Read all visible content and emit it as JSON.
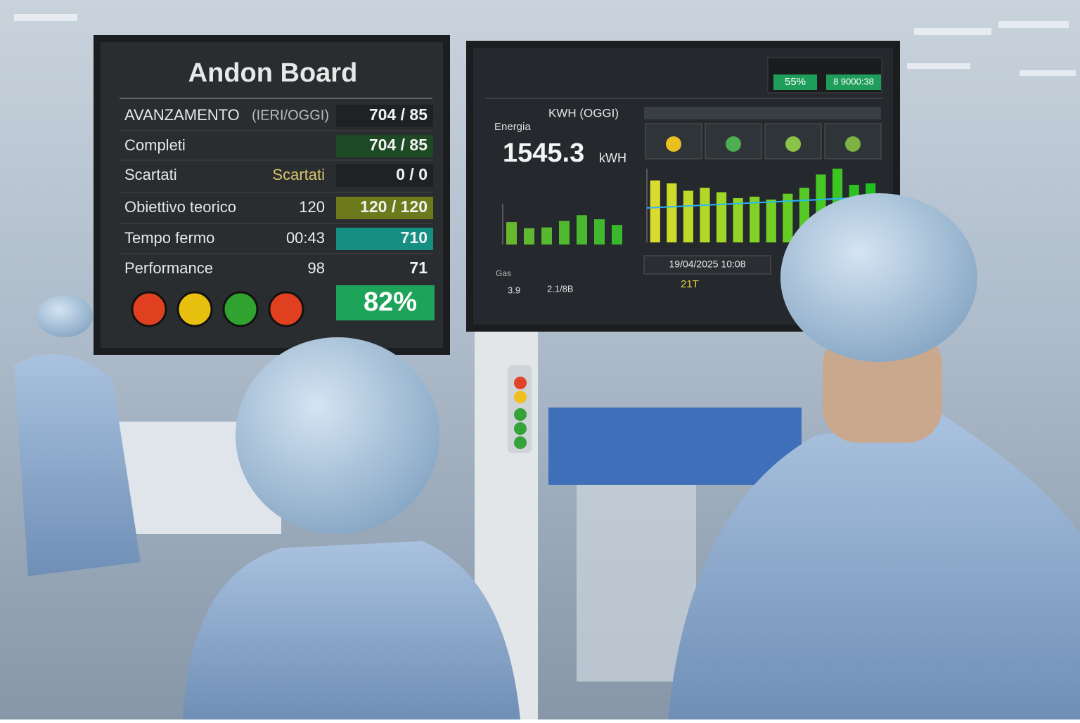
{
  "left_board": {
    "title": "Andon Board",
    "rows": [
      {
        "label": "AVANZAMENTO",
        "sublabel": "(IERI/OGGI)",
        "value": "704 /  85"
      },
      {
        "label": "Completi",
        "value": "704 /  85"
      },
      {
        "label": "Scartati",
        "mid": "Scartati",
        "value": "0 /   0"
      },
      {
        "label": "Obiettivo teorico",
        "mid": "120",
        "value": "120 / 120"
      },
      {
        "label": "Tempo fermo",
        "mid": "00:43",
        "value": "710"
      },
      {
        "label": "Performance",
        "mid": "98",
        "value": "71"
      }
    ],
    "performance": "82%"
  },
  "right_board": {
    "badge_1": "55%",
    "badge_2": "8 9000:38",
    "energy_label": "Energia",
    "energy_unit_title": "KWH (OGGI)",
    "energy_value": "1545.3",
    "energy_unit": "kWH",
    "small_chart": {
      "values": [
        55,
        40,
        42,
        58,
        72,
        62,
        48
      ]
    },
    "big_chart": {
      "values": [
        84,
        80,
        70,
        74,
        68,
        60,
        62,
        58,
        66,
        74,
        92,
        100,
        78,
        80
      ]
    },
    "timestamp": "19/04/2025 10:08",
    "shift": "21T",
    "gas_label": "Gas",
    "gas_value_1": "3.9",
    "gas_value_2": "2.1/8B"
  }
}
